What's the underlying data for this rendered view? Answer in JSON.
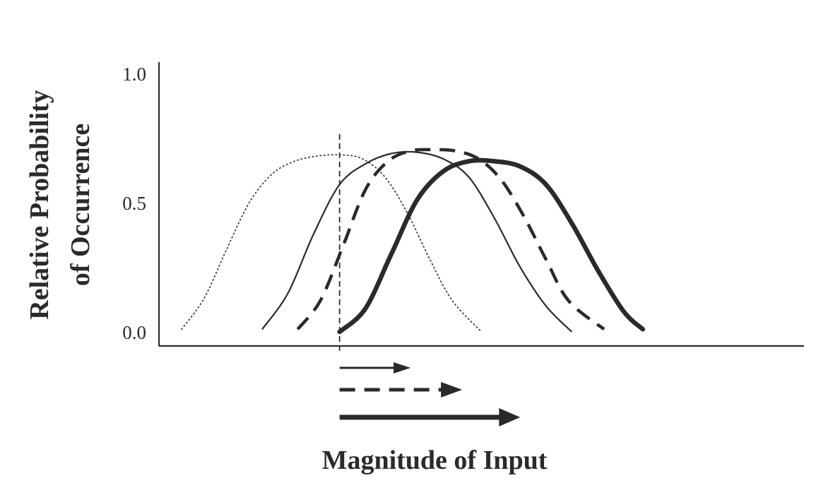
{
  "chart_data": {
    "type": "line",
    "xlabel": "Magnitude of Input",
    "ylabel": [
      "Relative Probability",
      "of Occurrence"
    ],
    "ylim": [
      0.0,
      1.0
    ],
    "yticks": [
      {
        "value": 0.0,
        "label": "0.0"
      },
      {
        "value": 0.5,
        "label": "0.5"
      },
      {
        "value": 1.0,
        "label": "1.0"
      }
    ],
    "x_tick_labels": false,
    "grid": false,
    "legend": "none",
    "threshold_line": {
      "x": 0.28,
      "style": "dashed",
      "color": "#2a2a2a"
    },
    "series": [
      {
        "style": "dotted",
        "color": "#2a2a2a",
        "x": [
          0.035,
          0.07,
          0.105,
          0.14,
          0.175,
          0.21,
          0.245,
          0.28,
          0.315,
          0.35,
          0.385,
          0.42,
          0.455,
          0.5
        ],
        "y": [
          0.01,
          0.13,
          0.32,
          0.5,
          0.61,
          0.66,
          0.68,
          0.685,
          0.67,
          0.6,
          0.46,
          0.28,
          0.12,
          0.0
        ]
      },
      {
        "style": "solid",
        "color": "#2a2a2a",
        "x": [
          0.16,
          0.2,
          0.24,
          0.28,
          0.32,
          0.36,
          0.4,
          0.44,
          0.48,
          0.52,
          0.56,
          0.6,
          0.64
        ],
        "y": [
          0.01,
          0.15,
          0.38,
          0.57,
          0.65,
          0.69,
          0.695,
          0.67,
          0.6,
          0.44,
          0.25,
          0.1,
          0.0
        ]
      },
      {
        "style": "dashed",
        "color": "#2a2a2a",
        "x": [
          0.215,
          0.25,
          0.285,
          0.32,
          0.355,
          0.39,
          0.425,
          0.46,
          0.495,
          0.53,
          0.565,
          0.6,
          0.635,
          0.69
        ],
        "y": [
          0.01,
          0.12,
          0.33,
          0.55,
          0.66,
          0.7,
          0.705,
          0.7,
          0.67,
          0.59,
          0.45,
          0.28,
          0.12,
          0.01
        ]
      },
      {
        "style": "thick",
        "color": "#2a2a2a",
        "x": [
          0.28,
          0.32,
          0.36,
          0.4,
          0.44,
          0.48,
          0.52,
          0.56,
          0.6,
          0.64,
          0.68,
          0.72,
          0.75
        ],
        "y": [
          0.0,
          0.09,
          0.3,
          0.51,
          0.62,
          0.66,
          0.66,
          0.64,
          0.57,
          0.42,
          0.24,
          0.08,
          0.01
        ]
      }
    ],
    "arrows": [
      {
        "style": "solid",
        "x_start": 0.28,
        "x_end": 0.39
      },
      {
        "style": "dashed",
        "x_start": 0.28,
        "x_end": 0.47
      },
      {
        "style": "thick",
        "x_start": 0.28,
        "x_end": 0.56
      }
    ]
  }
}
